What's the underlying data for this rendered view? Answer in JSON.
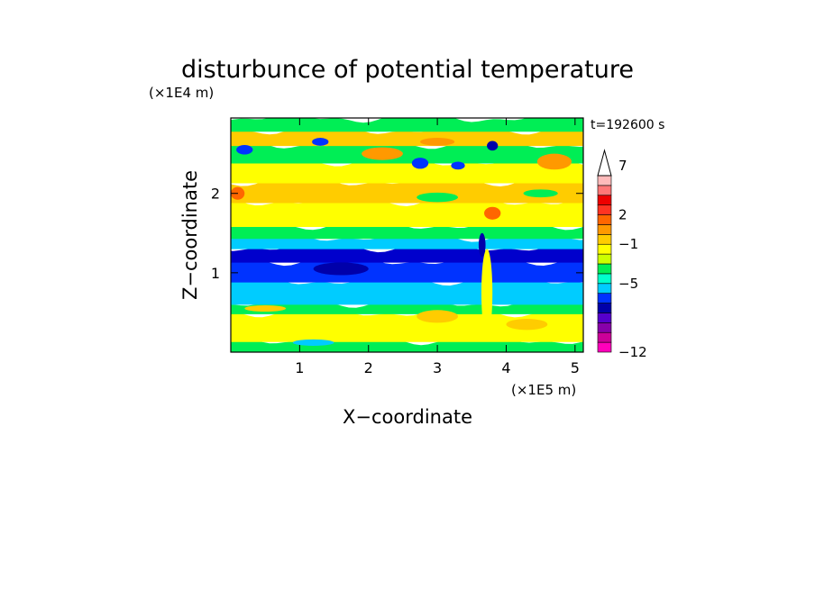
{
  "chart_data": {
    "type": "heatmap",
    "title": "disturbunce of potential temperature",
    "xlabel": "X−coordinate",
    "ylabel": "Z−coordinate",
    "x_unit_label": "(×1E5 m)",
    "y_unit_label": "(×1E4 m)",
    "time_label": "t=192600 s",
    "xlim": [
      0,
      5.12
    ],
    "ylim": [
      0,
      2.95
    ],
    "x_ticks": [
      1,
      2,
      3,
      4,
      5
    ],
    "y_ticks": [
      1,
      2
    ],
    "colorbar": {
      "colors": [
        "#ff00bb",
        "#cc0099",
        "#8800aa",
        "#5500cc",
        "#0000aa",
        "#0033ff",
        "#00ccff",
        "#00ffcc",
        "#00ee55",
        "#ccff00",
        "#ffff00",
        "#ffcc00",
        "#ff9900",
        "#ff6600",
        "#ff3322",
        "#ee0000",
        "#ff7777",
        "#ffbbbb"
      ],
      "extend_top_color": "#ffffff",
      "labels": [
        {
          "value": -12,
          "text": "−12"
        },
        {
          "value": -5,
          "text": "−5"
        },
        {
          "value": -1,
          "text": "−1"
        },
        {
          "value": 2,
          "text": "2"
        },
        {
          "value": 7,
          "text": "7"
        }
      ],
      "label_level_index": [
        0,
        7,
        11,
        14,
        19
      ]
    },
    "bands": [
      {
        "z": [
          0.0,
          0.15
        ],
        "color": "#00ee55"
      },
      {
        "z": [
          0.15,
          0.5
        ],
        "color": "#ffff00"
      },
      {
        "z": [
          0.5,
          0.62
        ],
        "color": "#00ee55"
      },
      {
        "z": [
          0.62,
          0.9
        ],
        "color": "#00ccff"
      },
      {
        "z": [
          0.9,
          1.15
        ],
        "color": "#0033ff"
      },
      {
        "z": [
          1.15,
          1.32
        ],
        "color": "#0000cc"
      },
      {
        "z": [
          1.32,
          1.45
        ],
        "color": "#00ccff"
      },
      {
        "z": [
          1.45,
          1.6
        ],
        "color": "#00ee55"
      },
      {
        "z": [
          1.6,
          1.9
        ],
        "color": "#ffff00"
      },
      {
        "z": [
          1.9,
          2.15
        ],
        "color": "#ffcc00"
      },
      {
        "z": [
          2.15,
          2.4
        ],
        "color": "#ffff00"
      },
      {
        "z": [
          2.4,
          2.62
        ],
        "color": "#00ee55"
      },
      {
        "z": [
          2.62,
          2.8
        ],
        "color": "#ffcc00"
      },
      {
        "z": [
          2.8,
          2.95
        ],
        "color": "#00ee55"
      }
    ],
    "features": [
      {
        "x": 0.2,
        "z": 2.55,
        "rx": 0.12,
        "rz": 0.06,
        "color": "#0033ff"
      },
      {
        "x": 1.3,
        "z": 2.65,
        "rx": 0.12,
        "rz": 0.05,
        "color": "#0033ff"
      },
      {
        "x": 2.75,
        "z": 2.38,
        "rx": 0.12,
        "rz": 0.07,
        "color": "#0033ff"
      },
      {
        "x": 3.3,
        "z": 2.35,
        "rx": 0.1,
        "rz": 0.05,
        "color": "#0033ff"
      },
      {
        "x": 3.8,
        "z": 2.6,
        "rx": 0.08,
        "rz": 0.06,
        "color": "#0000aa"
      },
      {
        "x": 0.1,
        "z": 2.0,
        "rx": 0.1,
        "rz": 0.08,
        "color": "#ff6600"
      },
      {
        "x": 2.2,
        "z": 2.5,
        "rx": 0.3,
        "rz": 0.08,
        "color": "#ff9900"
      },
      {
        "x": 3.0,
        "z": 2.65,
        "rx": 0.25,
        "rz": 0.05,
        "color": "#ff9900"
      },
      {
        "x": 4.7,
        "z": 2.4,
        "rx": 0.25,
        "rz": 0.1,
        "color": "#ff9900"
      },
      {
        "x": 3.8,
        "z": 1.75,
        "rx": 0.12,
        "rz": 0.08,
        "color": "#ff6600"
      },
      {
        "x": 3.0,
        "z": 1.95,
        "rx": 0.3,
        "rz": 0.06,
        "color": "#00ee55"
      },
      {
        "x": 4.5,
        "z": 2.0,
        "rx": 0.25,
        "rz": 0.05,
        "color": "#00ee55"
      },
      {
        "x": 1.6,
        "z": 1.05,
        "rx": 0.4,
        "rz": 0.08,
        "color": "#0000aa"
      },
      {
        "x": 3.72,
        "z": 0.75,
        "rx": 0.08,
        "rz": 0.55,
        "color": "#ffff00"
      },
      {
        "x": 3.65,
        "z": 1.35,
        "rx": 0.05,
        "rz": 0.15,
        "color": "#0000aa"
      },
      {
        "x": 3.0,
        "z": 0.45,
        "rx": 0.3,
        "rz": 0.08,
        "color": "#ffcc00"
      },
      {
        "x": 4.3,
        "z": 0.35,
        "rx": 0.3,
        "rz": 0.07,
        "color": "#ffcc00"
      },
      {
        "x": 0.5,
        "z": 0.55,
        "rx": 0.3,
        "rz": 0.04,
        "color": "#ffcc00"
      },
      {
        "x": 1.2,
        "z": 0.12,
        "rx": 0.3,
        "rz": 0.04,
        "color": "#00ccff"
      },
      {
        "x": 4.5,
        "z": 1.35,
        "rx": 0.2,
        "rz": 0.05,
        "color": "#00ccff"
      }
    ]
  }
}
